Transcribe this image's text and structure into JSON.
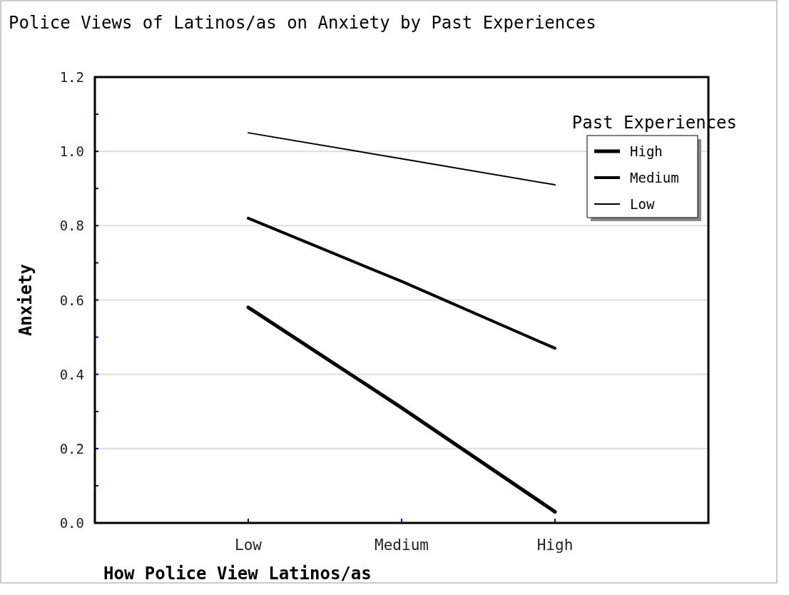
{
  "chart_data": {
    "type": "line",
    "title": "Police Views of Latinos/as on Anxiety by Past Experiences",
    "xlabel": "How Police View Latinos/as",
    "ylabel": "Anxiety",
    "legend_title": "Past Experiences",
    "categories": [
      "Low",
      "Medium",
      "High"
    ],
    "series": [
      {
        "name": "High",
        "color": "#000000",
        "values": [
          0.58,
          0.31,
          0.03
        ]
      },
      {
        "name": "Medium",
        "color": "#000000",
        "values": [
          0.82,
          0.65,
          0.47
        ]
      },
      {
        "name": "Low",
        "color": "#000000",
        "values": [
          1.05,
          0.98,
          0.91
        ]
      }
    ],
    "ylim": [
      0,
      1.2
    ],
    "yticks": [
      {
        "value": 0,
        "label": "0.0"
      },
      {
        "value": 0.1,
        "label": null
      },
      {
        "value": 0.2,
        "label": "0.2"
      },
      {
        "value": 0.3,
        "label": null
      },
      {
        "value": 0.4,
        "label": "0.4"
      },
      {
        "value": 0.5,
        "label": null
      },
      {
        "value": 0.6,
        "label": "0.6"
      },
      {
        "value": 0.7,
        "label": null
      },
      {
        "value": 0.8,
        "label": "0.8"
      },
      {
        "value": 0.9,
        "label": null
      },
      {
        "value": 1.0,
        "label": "1.0"
      },
      {
        "value": 1.1,
        "label": null
      },
      {
        "value": 1.2,
        "label": "1.2"
      }
    ],
    "grid": "y",
    "legend": "top right",
    "marker": "none",
    "line_style": "solid"
  }
}
